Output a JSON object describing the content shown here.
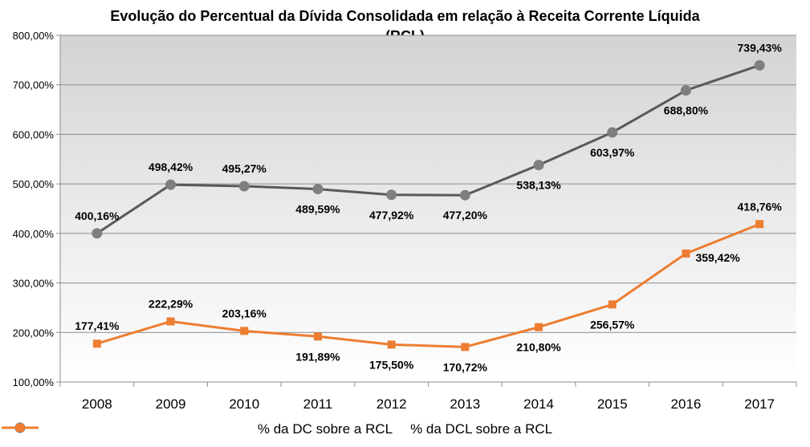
{
  "chart_data": {
    "type": "line",
    "title_line1": "Evolução do Percentual da Dívida Consolidada em relação à Receita Corrente Líquida",
    "title_line2": "(RCL)",
    "categories": [
      "2008",
      "2009",
      "2010",
      "2011",
      "2012",
      "2013",
      "2014",
      "2015",
      "2016",
      "2017"
    ],
    "ylim": [
      100,
      800
    ],
    "yticks": [
      100,
      200,
      300,
      400,
      500,
      600,
      700,
      800
    ],
    "ytick_labels": [
      "100,00%",
      "200,00%",
      "300,00%",
      "400,00%",
      "500,00%",
      "600,00%",
      "700,00%",
      "800,00%"
    ],
    "grid": true,
    "legend_position": "bottom",
    "series": [
      {
        "name": "% da DC sobre a RCL",
        "color": "#7f7f7f",
        "marker": "circle",
        "values": [
          400.16,
          498.42,
          495.27,
          489.59,
          477.92,
          477.2,
          538.13,
          603.97,
          688.8,
          739.43
        ],
        "labels": [
          "400,16%",
          "498,42%",
          "495,27%",
          "489,59%",
          "477,92%",
          "477,20%",
          "538,13%",
          "603,97%",
          "688,80%",
          "739,43%"
        ],
        "label_pos": [
          "above",
          "above",
          "above",
          "below",
          "below",
          "below",
          "below",
          "below",
          "below",
          "above"
        ]
      },
      {
        "name": "% da DCL sobre a RCL",
        "color": "#ed7d31",
        "marker": "square",
        "values": [
          177.41,
          222.29,
          203.16,
          191.89,
          175.5,
          170.72,
          210.8,
          256.57,
          359.42,
          418.76
        ],
        "labels": [
          "177,41%",
          "222,29%",
          "203,16%",
          "191,89%",
          "175,50%",
          "170,72%",
          "210,80%",
          "256,57%",
          "359,42%",
          "418,76%"
        ],
        "label_pos": [
          "above",
          "above",
          "above",
          "below",
          "below",
          "below",
          "below",
          "below",
          "right",
          "above"
        ]
      }
    ]
  }
}
